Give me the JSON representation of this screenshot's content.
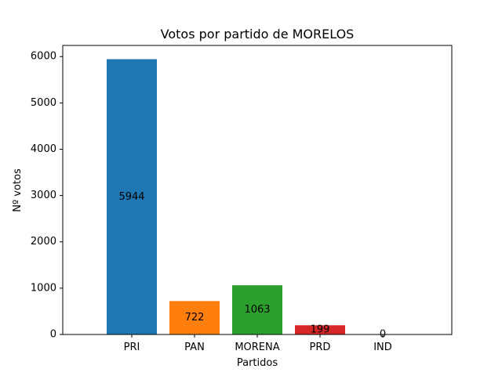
{
  "chart_data": {
    "type": "bar",
    "title": "Votos por partido de MORELOS",
    "xlabel": "Partidos",
    "ylabel": "Nº votos",
    "categories": [
      "PRI",
      "PAN",
      "MORENA",
      "PRD",
      "IND"
    ],
    "values": [
      5944,
      722,
      1063,
      199,
      0
    ],
    "value_labels": [
      "5944",
      "722",
      "1063",
      "199",
      "0"
    ],
    "colors": [
      "#1f77b4",
      "#ff7f0e",
      "#2ca02c",
      "#d62728",
      "#9467bd"
    ],
    "ylim": [
      0,
      6241
    ],
    "yticks": [
      0,
      1000,
      2000,
      3000,
      4000,
      5000,
      6000
    ],
    "grid": false,
    "legend": "none"
  }
}
